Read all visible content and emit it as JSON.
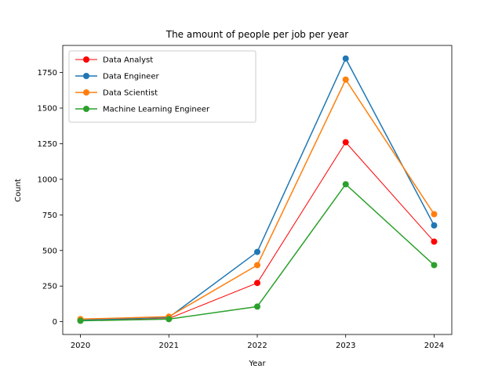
{
  "chart_data": {
    "type": "line",
    "title": "The amount of people per job per year",
    "xlabel": "Year",
    "ylabel": "Count",
    "x": [
      2020,
      2021,
      2022,
      2023,
      2024
    ],
    "xticks": [
      "2020",
      "2021",
      "2022",
      "2023",
      "2024"
    ],
    "yticks": [
      0,
      250,
      500,
      750,
      1000,
      1250,
      1500,
      1750
    ],
    "ylim": [
      -90,
      1940
    ],
    "grid": false,
    "legend_position": "top-left",
    "series": [
      {
        "name": "Data Analyst",
        "color": "#ff0000",
        "values": [
          8,
          22,
          272,
          1260,
          562
        ]
      },
      {
        "name": "Data Engineer",
        "color": "#1f77b4",
        "values": [
          12,
          30,
          490,
          1848,
          676
        ]
      },
      {
        "name": "Data Scientist",
        "color": "#ff7f0e",
        "values": [
          18,
          35,
          397,
          1700,
          755
        ]
      },
      {
        "name": "Machine Learning Engineer",
        "color": "#2ca02c",
        "values": [
          6,
          18,
          106,
          965,
          397
        ]
      }
    ]
  }
}
